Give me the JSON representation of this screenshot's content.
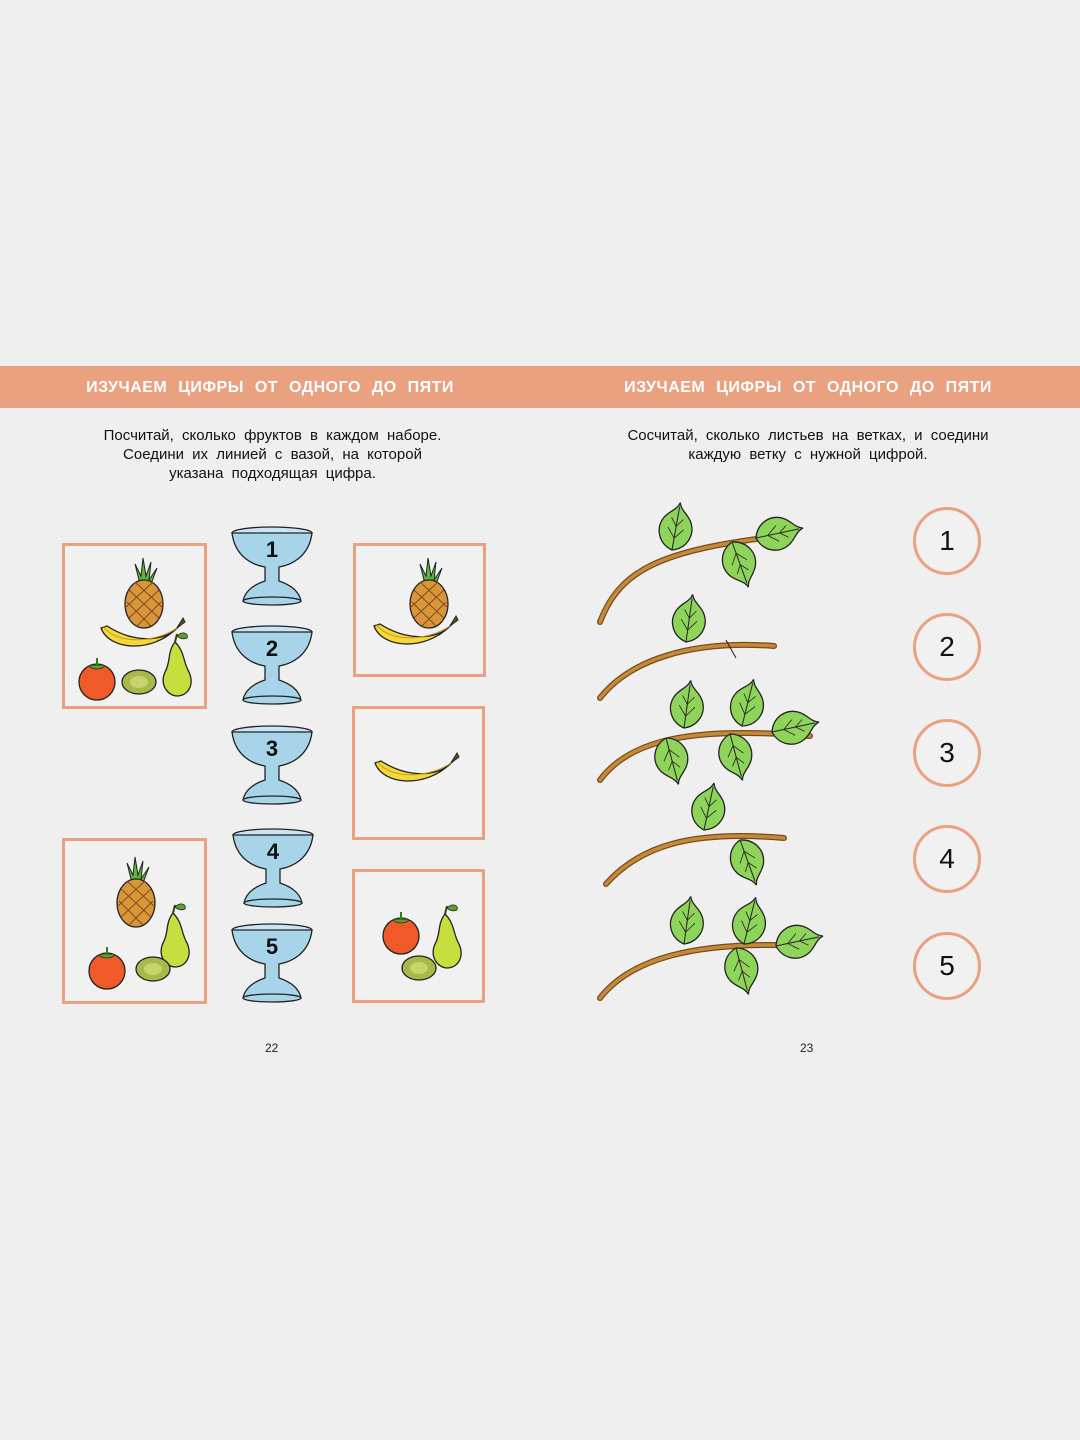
{
  "left_page": {
    "header_title": "ИЗУЧАЕМ ЦИФРЫ ОТ ОДНОГО ДО ПЯТИ",
    "instruction_lines": [
      "Посчитай, сколько фруктов в каждом наборе.",
      "Соедини их линией с вазой, на которой",
      "указана подходящая цифра."
    ],
    "vases": [
      "1",
      "2",
      "3",
      "4",
      "5"
    ],
    "fruit_sets": [
      {
        "contents": [
          "pineapple-icon",
          "banana-icon",
          "tomato-icon",
          "kiwi-icon",
          "pear-icon"
        ]
      },
      {
        "contents": [
          "pineapple-icon",
          "tomato-icon",
          "kiwi-icon",
          "pear-icon"
        ]
      },
      {
        "contents": [
          "pineapple-icon",
          "banana-icon"
        ]
      },
      {
        "contents": [
          "banana-icon"
        ]
      },
      {
        "contents": [
          "tomato-icon",
          "pear-icon",
          "kiwi-icon"
        ]
      }
    ],
    "page_number": "22"
  },
  "right_page": {
    "header_title": "ИЗУЧАЕМ ЦИФРЫ ОТ ОДНОГО ДО ПЯТИ",
    "instruction_lines": [
      "Сосчитай, сколько листьев на ветках, и соедини",
      "каждую ветку с нужной цифрой."
    ],
    "branches_leaf_counts": [
      3,
      1,
      5,
      2,
      4
    ],
    "numbers": [
      "1",
      "2",
      "3",
      "4",
      "5"
    ],
    "page_number": "23"
  },
  "colors": {
    "accent": "#e9a180",
    "background": "#efefef",
    "vase": "#a8d4ea",
    "leaf": "#8fd45a",
    "branch": "#c48a3c"
  }
}
